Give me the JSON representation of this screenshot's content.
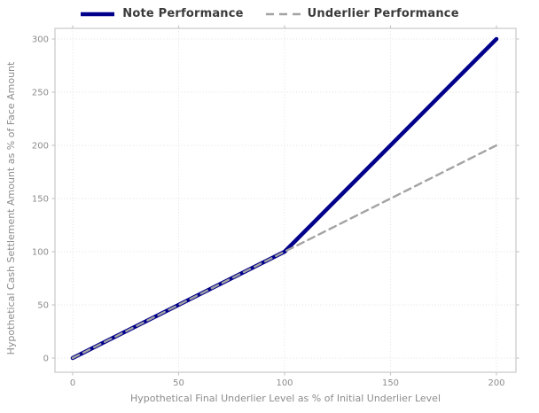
{
  "chart_data": {
    "type": "line",
    "title": "",
    "xlabel": "Hypothetical Final Underlier Level as % of Initial Underlier Level",
    "ylabel": "Hypothetical Cash Settlement Amount as % of Face Amount",
    "xlim": [
      0,
      200
    ],
    "ylim": [
      0,
      300
    ],
    "xticks": [
      0,
      50,
      100,
      150,
      200
    ],
    "yticks": [
      0,
      50,
      100,
      150,
      200,
      250,
      300
    ],
    "grid": "dotted",
    "legend_position": "top-center",
    "series": [
      {
        "name": "Note Performance",
        "x": [
          0,
          100,
          200
        ],
        "y": [
          0,
          100,
          300
        ],
        "color": "#00008B",
        "style": "solid",
        "width": 4.5
      },
      {
        "name": "Underlier Performance",
        "x": [
          0,
          100,
          200
        ],
        "y": [
          0,
          100,
          200
        ],
        "color": "#A3A3A3",
        "style": "dashed",
        "width": 2.4,
        "dash": "8 5.5"
      }
    ],
    "colors": {
      "background": "#FFFFFF",
      "grid": "#E2E2E2",
      "border": "#C9C9C9",
      "tick_label": "#8C8C8C",
      "axis_label": "#8C8C8C",
      "legend_text": "#3A3A3A"
    }
  }
}
